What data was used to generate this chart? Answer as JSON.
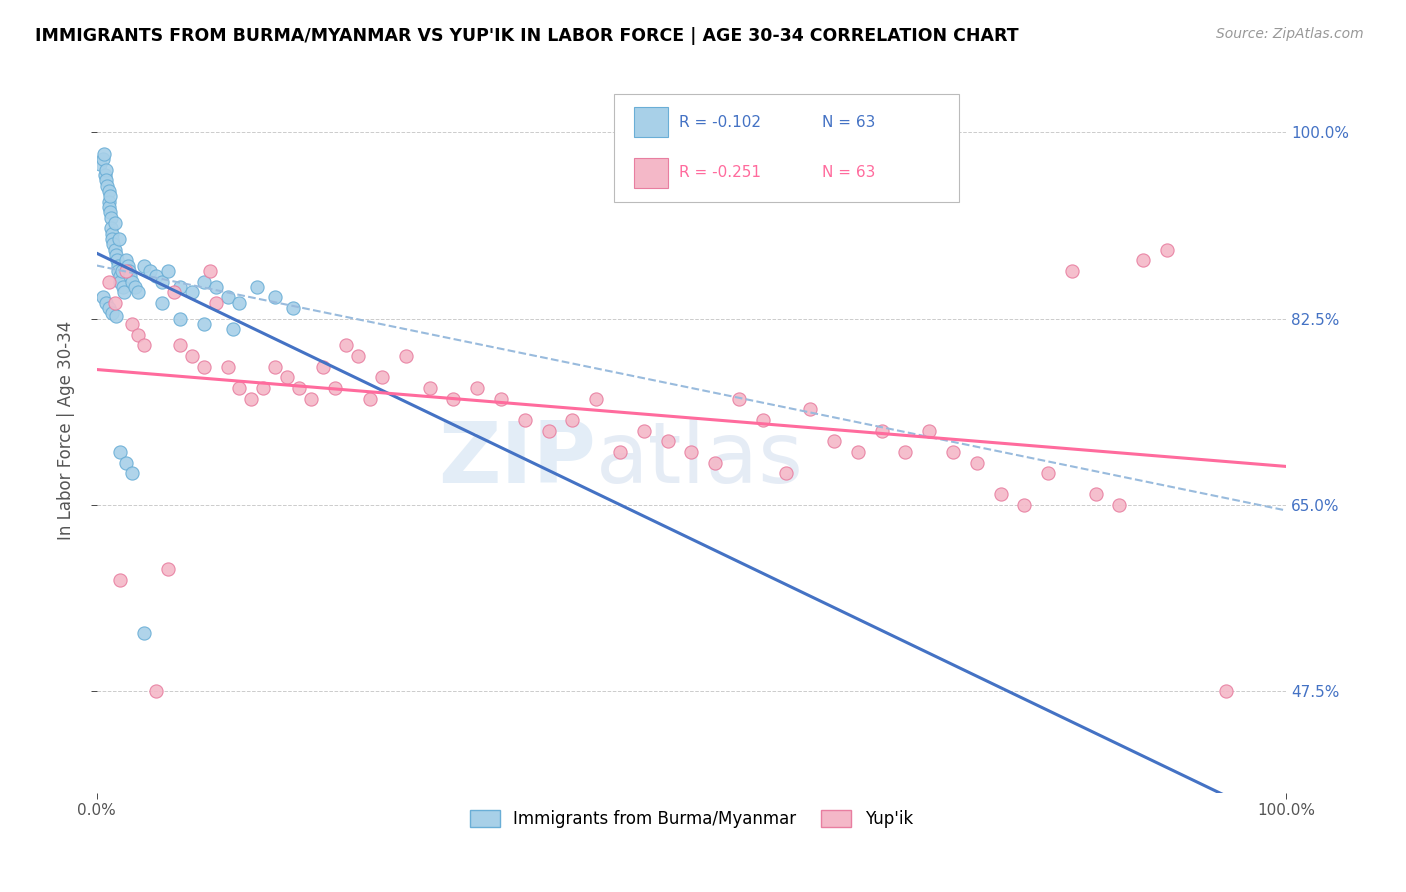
{
  "title": "IMMIGRANTS FROM BURMA/MYANMAR VS YUP'IK IN LABOR FORCE | AGE 30-34 CORRELATION CHART",
  "source_text": "Source: ZipAtlas.com",
  "ylabel": "In Labor Force | Age 30-34",
  "y_tick_labels": [
    "47.5%",
    "65.0%",
    "82.5%",
    "100.0%"
  ],
  "y_tick_values": [
    0.475,
    0.65,
    0.825,
    1.0
  ],
  "x_range": [
    0.0,
    1.0
  ],
  "y_range": [
    0.38,
    1.06
  ],
  "legend_r1": "R = -0.102",
  "legend_n1": "N = 63",
  "legend_r2": "R = -0.251",
  "legend_n2": "N = 63",
  "color_blue": "#A8D0E8",
  "color_blue_edge": "#6AAED6",
  "color_pink": "#F4B8C8",
  "color_pink_edge": "#E87EA0",
  "color_blue_line": "#4472C4",
  "color_pink_line": "#FF6B9D",
  "color_dashed": "#99BBDD",
  "watermark_zip": "ZIP",
  "watermark_atlas": "atlas",
  "legend_label1": "Immigrants from Burma/Myanmar",
  "legend_label2": "Yup'ik",
  "blue_scatter_x": [
    0.003,
    0.005,
    0.006,
    0.007,
    0.008,
    0.008,
    0.009,
    0.01,
    0.01,
    0.01,
    0.011,
    0.011,
    0.012,
    0.012,
    0.013,
    0.013,
    0.014,
    0.015,
    0.015,
    0.016,
    0.017,
    0.018,
    0.018,
    0.019,
    0.02,
    0.02,
    0.021,
    0.022,
    0.023,
    0.025,
    0.026,
    0.027,
    0.028,
    0.03,
    0.032,
    0.035,
    0.04,
    0.045,
    0.05,
    0.055,
    0.06,
    0.07,
    0.08,
    0.09,
    0.1,
    0.11,
    0.12,
    0.135,
    0.15,
    0.165,
    0.005,
    0.008,
    0.01,
    0.013,
    0.016,
    0.02,
    0.025,
    0.03,
    0.04,
    0.055,
    0.07,
    0.09,
    0.115
  ],
  "blue_scatter_y": [
    0.97,
    0.975,
    0.98,
    0.96,
    0.965,
    0.955,
    0.95,
    0.945,
    0.935,
    0.93,
    0.94,
    0.925,
    0.92,
    0.91,
    0.905,
    0.9,
    0.895,
    0.915,
    0.89,
    0.885,
    0.88,
    0.875,
    0.87,
    0.9,
    0.865,
    0.86,
    0.87,
    0.855,
    0.85,
    0.88,
    0.875,
    0.87,
    0.865,
    0.86,
    0.855,
    0.85,
    0.875,
    0.87,
    0.865,
    0.86,
    0.87,
    0.855,
    0.85,
    0.86,
    0.855,
    0.845,
    0.84,
    0.855,
    0.845,
    0.835,
    0.845,
    0.84,
    0.835,
    0.83,
    0.828,
    0.7,
    0.69,
    0.68,
    0.53,
    0.84,
    0.825,
    0.82,
    0.815
  ],
  "pink_scatter_x": [
    0.01,
    0.015,
    0.02,
    0.025,
    0.03,
    0.035,
    0.04,
    0.05,
    0.06,
    0.065,
    0.07,
    0.08,
    0.09,
    0.095,
    0.1,
    0.11,
    0.12,
    0.13,
    0.14,
    0.15,
    0.16,
    0.17,
    0.18,
    0.19,
    0.2,
    0.21,
    0.22,
    0.23,
    0.24,
    0.26,
    0.28,
    0.3,
    0.32,
    0.34,
    0.36,
    0.38,
    0.4,
    0.42,
    0.44,
    0.46,
    0.48,
    0.5,
    0.52,
    0.54,
    0.56,
    0.58,
    0.6,
    0.62,
    0.64,
    0.66,
    0.68,
    0.7,
    0.72,
    0.74,
    0.76,
    0.78,
    0.8,
    0.82,
    0.84,
    0.86,
    0.88,
    0.9,
    0.95
  ],
  "pink_scatter_y": [
    0.86,
    0.84,
    0.58,
    0.87,
    0.82,
    0.81,
    0.8,
    0.475,
    0.59,
    0.85,
    0.8,
    0.79,
    0.78,
    0.87,
    0.84,
    0.78,
    0.76,
    0.75,
    0.76,
    0.78,
    0.77,
    0.76,
    0.75,
    0.78,
    0.76,
    0.8,
    0.79,
    0.75,
    0.77,
    0.79,
    0.76,
    0.75,
    0.76,
    0.75,
    0.73,
    0.72,
    0.73,
    0.75,
    0.7,
    0.72,
    0.71,
    0.7,
    0.69,
    0.75,
    0.73,
    0.68,
    0.74,
    0.71,
    0.7,
    0.72,
    0.7,
    0.72,
    0.7,
    0.69,
    0.66,
    0.65,
    0.68,
    0.87,
    0.66,
    0.65,
    0.88,
    0.89,
    0.475
  ]
}
